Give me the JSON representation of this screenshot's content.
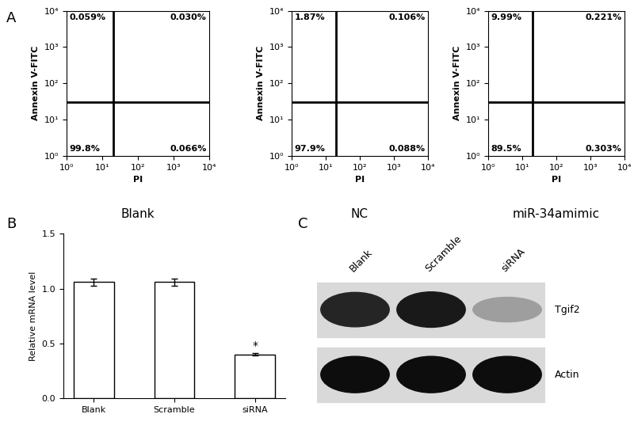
{
  "chart_data": [
    {
      "type": "flow",
      "panel": "A",
      "title": "Blank",
      "x_label": "PI",
      "y_label": "Annexin V-FITC",
      "log": true,
      "xlim": [
        1,
        10000
      ],
      "ylim": [
        1,
        10000
      ],
      "xticks": [
        {
          "value": 1,
          "label": "10⁰"
        },
        {
          "value": 10,
          "label": "10¹"
        },
        {
          "value": 100,
          "label": "10²"
        },
        {
          "value": 1000,
          "label": "10³"
        },
        {
          "value": 10000,
          "label": "10⁴"
        }
      ],
      "yticks": [
        {
          "value": 1,
          "label": "10⁰"
        },
        {
          "value": 10,
          "label": "10¹"
        },
        {
          "value": 100,
          "label": "10²"
        },
        {
          "value": 1000,
          "label": "10³"
        },
        {
          "value": 10000,
          "label": "10⁴"
        }
      ],
      "gate_x": 20,
      "gate_y": 30,
      "quadrants": {
        "upper_left": {
          "value": 0.059,
          "label": "0.059%"
        },
        "upper_right": {
          "value": 0.03,
          "label": "0.030%"
        },
        "lower_left": {
          "value": 99.8,
          "label": "99.8%"
        },
        "lower_right": {
          "value": 0.066,
          "label": "0.066%"
        }
      }
    },
    {
      "type": "flow",
      "title": "NC",
      "x_label": "PI",
      "y_label": "Annexin V-FITC",
      "log": true,
      "xlim": [
        1,
        10000
      ],
      "ylim": [
        1,
        10000
      ],
      "xticks": [
        {
          "value": 1,
          "label": "10⁰"
        },
        {
          "value": 10,
          "label": "10¹"
        },
        {
          "value": 100,
          "label": "10²"
        },
        {
          "value": 1000,
          "label": "10³"
        },
        {
          "value": 10000,
          "label": "10⁴"
        }
      ],
      "yticks": [
        {
          "value": 1,
          "label": "10⁰"
        },
        {
          "value": 10,
          "label": "10¹"
        },
        {
          "value": 100,
          "label": "10²"
        },
        {
          "value": 1000,
          "label": "10³"
        },
        {
          "value": 10000,
          "label": "10⁴"
        }
      ],
      "gate_x": 20,
      "gate_y": 30,
      "quadrants": {
        "upper_left": {
          "value": 1.87,
          "label": "1.87%"
        },
        "upper_right": {
          "value": 0.106,
          "label": "0.106%"
        },
        "lower_left": {
          "value": 97.9,
          "label": "97.9%"
        },
        "lower_right": {
          "value": 0.088,
          "label": "0.088%"
        }
      }
    },
    {
      "type": "flow",
      "title": "miR-34amimic",
      "x_label": "PI",
      "y_label": "Annexin V-FITC",
      "log": true,
      "xlim": [
        1,
        10000
      ],
      "ylim": [
        1,
        10000
      ],
      "xticks": [
        {
          "value": 1,
          "label": "10⁰"
        },
        {
          "value": 10,
          "label": "10¹"
        },
        {
          "value": 100,
          "label": "10²"
        },
        {
          "value": 1000,
          "label": "10³"
        },
        {
          "value": 10000,
          "label": "10⁴"
        }
      ],
      "yticks": [
        {
          "value": 1,
          "label": "10⁰"
        },
        {
          "value": 10,
          "label": "10¹"
        },
        {
          "value": 100,
          "label": "10²"
        },
        {
          "value": 1000,
          "label": "10³"
        },
        {
          "value": 10000,
          "label": "10⁴"
        }
      ],
      "gate_x": 20,
      "gate_y": 30,
      "quadrants": {
        "upper_left": {
          "value": 9.99,
          "label": "9.99%"
        },
        "upper_right": {
          "value": 0.221,
          "label": "0.221%"
        },
        "lower_left": {
          "value": 89.5,
          "label": "89.5%"
        },
        "lower_right": {
          "value": 0.303,
          "label": "0.303%"
        }
      }
    },
    {
      "type": "bar",
      "panel": "B",
      "y_label": "Relative mRNA level",
      "categories": [
        "Blank",
        "Scramble",
        "siRNA"
      ],
      "values": [
        1.06,
        1.06,
        0.4
      ],
      "errors": [
        0.03,
        0.03,
        0.01
      ],
      "color": "#ffffff",
      "ylim": [
        0,
        1.5
      ],
      "yticks": [
        {
          "value": 0,
          "label": "0.0"
        },
        {
          "value": 0.5,
          "label": "0.5"
        },
        {
          "value": 1,
          "label": "1.0"
        },
        {
          "value": 1.5,
          "label": "1.5"
        }
      ],
      "annotations": [
        {
          "text": "*",
          "category": "siRNA"
        }
      ]
    },
    {
      "type": "blot",
      "panel": "C",
      "lanes": [
        "Blank",
        "Scramble",
        "siRNA"
      ],
      "bands": [
        {
          "name": "Tgif2",
          "intensity": [
            0.9,
            0.95,
            0.4
          ]
        },
        {
          "name": "Actin",
          "intensity": [
            1.0,
            1.0,
            1.0
          ]
        }
      ]
    }
  ]
}
